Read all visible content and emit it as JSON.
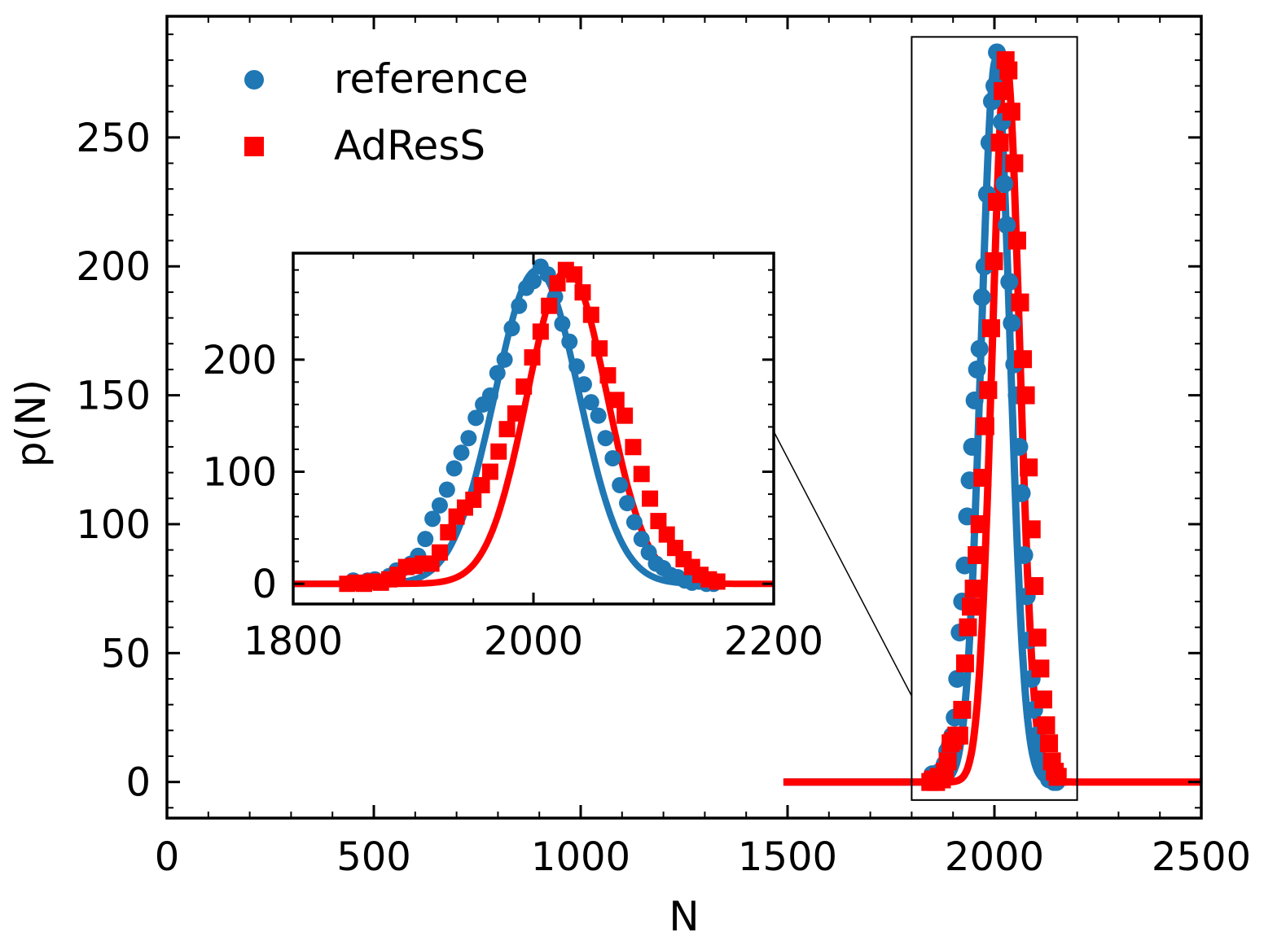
{
  "chart_data": {
    "type": "line",
    "xlabel": "N",
    "ylabel": "p(N)",
    "xlim": [
      0,
      2500
    ],
    "ylim": [
      -14,
      297
    ],
    "xticks": [
      0,
      500,
      1000,
      1500,
      2000,
      2500
    ],
    "yticks": [
      0,
      50,
      100,
      150,
      200,
      250
    ],
    "x_minor_step": 100,
    "y_minor_step": 10,
    "grid": false,
    "legend": {
      "placement": "top-left",
      "entries": [
        {
          "label": "reference",
          "marker": "circle",
          "color": "#1f77b4"
        },
        {
          "label": "AdResS",
          "marker": "square",
          "color": "#ff0000"
        }
      ]
    },
    "series": [
      {
        "name": "reference",
        "color": "#1f77b4",
        "marker": "circle",
        "fit": {
          "kind": "gaussian",
          "mean": 2003,
          "sigma": 35,
          "peak": 280,
          "range": [
            1490,
            2160
          ]
        },
        "x": [
          1850,
          1856,
          1862,
          1868,
          1874,
          1880,
          1886,
          1892,
          1898,
          1904,
          1910,
          1916,
          1922,
          1928,
          1934,
          1940,
          1946,
          1952,
          1958,
          1964,
          1970,
          1976,
          1982,
          1988,
          1994,
          2000,
          2006,
          2012,
          2018,
          2024,
          2030,
          2036,
          2042,
          2048,
          2054,
          2060,
          2066,
          2072,
          2078,
          2084,
          2090,
          2096,
          2102,
          2108,
          2114,
          2120,
          2126,
          2132,
          2138,
          2144,
          2150
        ],
        "y": [
          3,
          1,
          3,
          4,
          2,
          7,
          12,
          14,
          18,
          25,
          40,
          58,
          70,
          84,
          103,
          117,
          130,
          148,
          160,
          168,
          188,
          200,
          228,
          248,
          264,
          270,
          283,
          276,
          256,
          232,
          216,
          194,
          178,
          162,
          150,
          130,
          112,
          88,
          72,
          55,
          40,
          28,
          18,
          14,
          8,
          6,
          3,
          1,
          2,
          0,
          0
        ]
      },
      {
        "name": "AdResS",
        "color": "#ff0000",
        "marker": "square",
        "fit": {
          "kind": "gaussian",
          "mean": 2028,
          "sigma": 33,
          "peak": 280,
          "range": [
            1490,
            2500
          ]
        },
        "x": [
          1845,
          1852,
          1859,
          1866,
          1873,
          1880,
          1887,
          1894,
          1901,
          1908,
          1915,
          1922,
          1929,
          1936,
          1943,
          1950,
          1957,
          1964,
          1971,
          1978,
          1985,
          1992,
          1999,
          2006,
          2013,
          2020,
          2027,
          2034,
          2041,
          2048,
          2055,
          2062,
          2069,
          2076,
          2083,
          2090,
          2097,
          2104,
          2111,
          2118,
          2125,
          2132,
          2139,
          2146,
          2153
        ],
        "y": [
          0,
          1,
          0,
          2,
          1,
          4,
          8,
          15,
          16,
          18,
          18,
          28,
          46,
          60,
          68,
          75,
          88,
          100,
          118,
          138,
          152,
          176,
          202,
          225,
          248,
          268,
          280,
          276,
          260,
          240,
          210,
          186,
          164,
          150,
          122,
          98,
          76,
          56,
          44,
          32,
          22,
          15,
          8,
          4,
          2
        ]
      }
    ],
    "zoom_box": {
      "x": [
        1800,
        2200
      ],
      "y": [
        -7,
        289
      ]
    },
    "inset": {
      "xlim": [
        1800,
        2200
      ],
      "ylim": [
        -18,
        295
      ],
      "xticks": [
        1800,
        2000,
        2200
      ],
      "yticks": [
        0,
        100,
        200
      ],
      "x_minor_step": 50,
      "y_minor_step": 20
    }
  }
}
